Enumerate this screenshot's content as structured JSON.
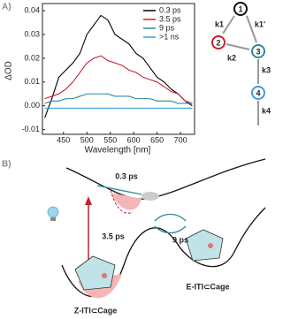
{
  "panel_labels": [
    "A)",
    "B)"
  ],
  "chart_data": {
    "type": "line",
    "xlabel": "Wavelength [nm]",
    "ylabel": "ΔOD",
    "x": [
      410,
      425,
      440,
      455,
      470,
      485,
      500,
      515,
      530,
      545,
      560,
      575,
      590,
      605,
      620,
      635,
      650,
      665,
      680,
      695,
      710,
      725
    ],
    "series": [
      {
        "name": "0.3 ps",
        "color": "#000000",
        "values": [
          -0.005,
          0.003,
          0.012,
          0.015,
          0.018,
          0.022,
          0.03,
          0.034,
          0.038,
          0.036,
          0.03,
          0.028,
          0.026,
          0.022,
          0.02,
          0.016,
          0.012,
          0.01,
          0.007,
          0.005,
          0.002,
          0.0
        ]
      },
      {
        "name": "3.5 ps",
        "color": "#c8202e",
        "values": [
          0.003,
          0.004,
          0.005,
          0.007,
          0.01,
          0.014,
          0.018,
          0.02,
          0.021,
          0.019,
          0.018,
          0.017,
          0.015,
          0.014,
          0.012,
          0.011,
          0.01,
          0.008,
          0.006,
          0.005,
          0.002,
          0.001
        ]
      },
      {
        "name": "9 ps",
        "color": "#2a8a9c",
        "values": [
          0.001,
          0.002,
          0.002,
          0.003,
          0.003,
          0.004,
          0.005,
          0.005,
          0.005,
          0.005,
          0.004,
          0.004,
          0.004,
          0.003,
          0.003,
          0.003,
          0.002,
          0.002,
          0.002,
          0.001,
          0.001,
          0.001
        ]
      },
      {
        "name": ">1 ns",
        "color": "#3aa0d8",
        "values": [
          -0.001,
          -0.001,
          -0.001,
          -0.001,
          -0.001,
          -0.001,
          -0.001,
          -0.001,
          -0.001,
          -0.001,
          -0.001,
          -0.001,
          -0.001,
          -0.001,
          -0.001,
          -0.001,
          -0.001,
          -0.001,
          -0.001,
          -0.001,
          -0.001,
          -0.001
        ]
      }
    ],
    "xlim": [
      405,
      730
    ],
    "xticks": [
      450,
      500,
      550,
      600,
      650,
      700
    ],
    "ylim": [
      -0.012,
      0.043
    ],
    "yticks": [
      -0.01,
      {
        "value": 0,
        "label": "0.00"
      },
      0.01,
      0.02,
      0.03,
      0.04
    ],
    "legend": "upper-right"
  },
  "scheme": {
    "nodes": [
      "1",
      "2",
      "3",
      "4"
    ],
    "rates": [
      "k1",
      "k1'",
      "k2",
      "k3",
      "k4"
    ]
  },
  "energy_diagram": {
    "times": [
      "0.3 ps",
      "3.5 ps",
      "9 ps"
    ],
    "states": [
      "Z-ITI⊂Cage",
      "E-ITI⊂Cage"
    ]
  }
}
